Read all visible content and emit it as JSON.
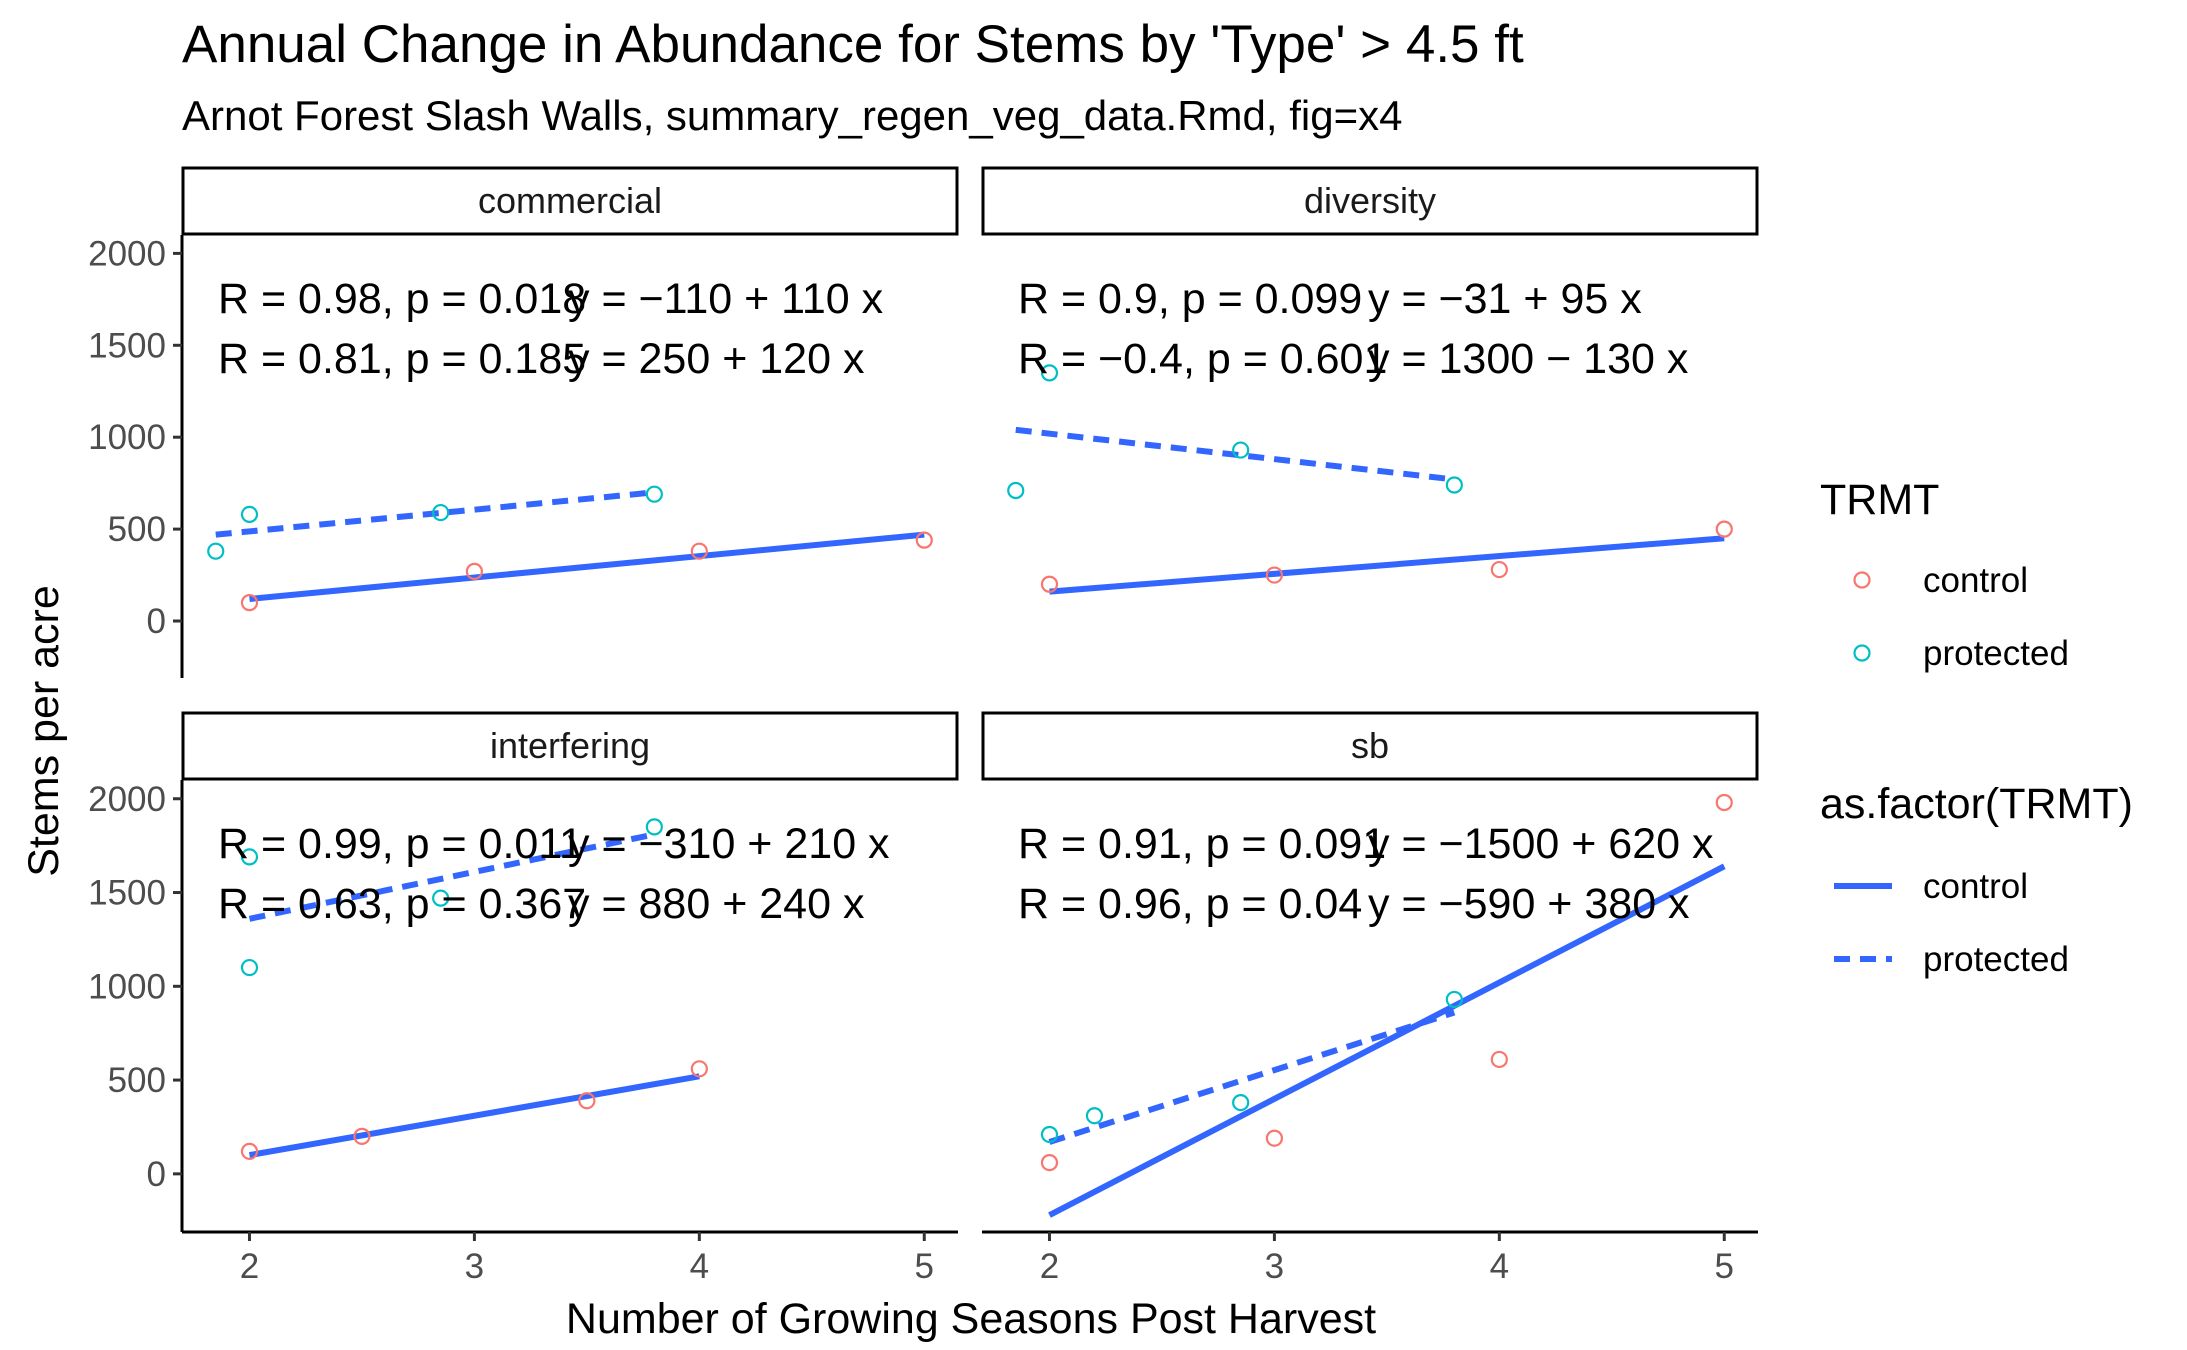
{
  "chart_data": {
    "type": "scatter",
    "title": "Annual Change in Abundance for Stems by 'Type' > 4.5 ft",
    "subtitle": "Arnot Forest Slash Walls, summary_regen_veg_data.Rmd, fig=x4",
    "xlabel": "Number of Growing Seasons Post Harvest",
    "ylabel": "Stems per acre",
    "xlim": [
      1.7,
      5.15
    ],
    "ylim": [
      -310,
      2100
    ],
    "x_ticks": [
      "2",
      "3",
      "4",
      "5"
    ],
    "y_ticks": [
      "0",
      "500",
      "1000",
      "1500",
      "2000"
    ],
    "grid": false,
    "colors": {
      "control_point": "#F8766D",
      "protected_point": "#00BFC4",
      "line": "#3366FF",
      "strip_fill": "#FFFFFF",
      "strip_border": "#000000"
    },
    "legend": {
      "position": "right",
      "point_legend": {
        "title": "TRMT",
        "entries": [
          "control",
          "protected"
        ]
      },
      "line_legend": {
        "title": "as.factor(TRMT)",
        "entries": [
          "control",
          "protected"
        ]
      }
    },
    "panels": [
      {
        "label": "commercial",
        "annotations": [
          {
            "r": "R = 0.98, p = 0.018",
            "eq": "y = −110 + 110 x"
          },
          {
            "r": "R = 0.81, p = 0.185",
            "eq": "y = 250 + 120 x"
          }
        ],
        "control_points": [
          [
            2,
            100
          ],
          [
            3,
            270
          ],
          [
            4,
            380
          ],
          [
            5,
            440
          ]
        ],
        "protected_points": [
          [
            1.85,
            380
          ],
          [
            2,
            580
          ],
          [
            2.85,
            590
          ],
          [
            3.8,
            690
          ]
        ],
        "control_line": [
          [
            2,
            120
          ],
          [
            5,
            470
          ]
        ],
        "protected_line": [
          [
            1.85,
            470
          ],
          [
            3.8,
            700
          ]
        ]
      },
      {
        "label": "diversity",
        "annotations": [
          {
            "r": "R = 0.9, p = 0.099",
            "eq": "y = −31 + 95 x"
          },
          {
            "r": "R = −0.4, p = 0.601",
            "eq": "y = 1300 − 130 x"
          }
        ],
        "control_points": [
          [
            2,
            200
          ],
          [
            3,
            250
          ],
          [
            4,
            280
          ],
          [
            5,
            500
          ]
        ],
        "protected_points": [
          [
            1.85,
            710
          ],
          [
            2,
            1350
          ],
          [
            2.85,
            930
          ],
          [
            3.8,
            740
          ]
        ],
        "control_line": [
          [
            2,
            160
          ],
          [
            5,
            450
          ]
        ],
        "protected_line": [
          [
            1.85,
            1040
          ],
          [
            3.8,
            770
          ]
        ]
      },
      {
        "label": "interfering",
        "annotations": [
          {
            "r": "R = 0.99, p = 0.011",
            "eq": "y = −310 + 210 x"
          },
          {
            "r": "R = 0.63, p = 0.367",
            "eq": "y = 880 + 240 x"
          }
        ],
        "control_points": [
          [
            2,
            120
          ],
          [
            2.5,
            200
          ],
          [
            3.5,
            390
          ],
          [
            4,
            560
          ]
        ],
        "protected_points": [
          [
            2,
            1690
          ],
          [
            2,
            1100
          ],
          [
            2.85,
            1470
          ],
          [
            3.8,
            1850
          ]
        ],
        "control_line": [
          [
            2,
            100
          ],
          [
            4,
            520
          ]
        ],
        "protected_line": [
          [
            2,
            1360
          ],
          [
            3.8,
            1810
          ]
        ]
      },
      {
        "label": "sb",
        "annotations": [
          {
            "r": "R = 0.91, p = 0.091",
            "eq": "y = −1500 + 620 x"
          },
          {
            "r": "R = 0.96, p = 0.04",
            "eq": "y = −590 + 380 x"
          }
        ],
        "control_points": [
          [
            2,
            60
          ],
          [
            3,
            190
          ],
          [
            4,
            610
          ],
          [
            5,
            1980
          ]
        ],
        "protected_points": [
          [
            2,
            210
          ],
          [
            2.2,
            310
          ],
          [
            2.85,
            380
          ],
          [
            3.8,
            930
          ]
        ],
        "control_line": [
          [
            2,
            -220
          ],
          [
            5,
            1640
          ]
        ],
        "protected_line": [
          [
            2,
            170
          ],
          [
            3.8,
            860
          ]
        ]
      }
    ]
  }
}
